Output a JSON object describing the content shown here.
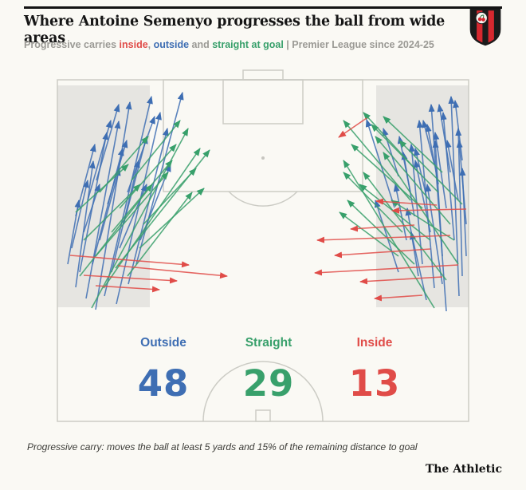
{
  "header": {
    "title": "Where Antoine Semenyo progresses the ball from wide areas",
    "subtitle": {
      "prefix": "Progressive carries ",
      "inside_word": "inside",
      "sep1": ", ",
      "outside_word": "outside",
      "sep2": " and ",
      "straight_word": "straight at goal",
      "suffix": " | Premier League since 2024-25"
    },
    "crest_icon": "afc-bournemouth-crest"
  },
  "chart_data": {
    "type": "scatter",
    "subtype": "football-pitch-carry-map",
    "title": "Where Antoine Semenyo progresses the ball from wide areas",
    "pitch": {
      "view": "attacking half, goal at top, halfway line at bottom",
      "shaded_zones": "wide areas on left and right flanks"
    },
    "categories": [
      "Outside",
      "Straight",
      "Inside"
    ],
    "values": [
      48,
      29,
      13
    ],
    "colors": {
      "outside": "#3e6eb3",
      "straight": "#38a06b",
      "inside": "#e04c48"
    },
    "coords": "page-pixels-660x614",
    "arrows": {
      "outside": [
        [
          120,
          388,
          163,
          128
        ],
        [
          108,
          374,
          149,
          152
        ],
        [
          95,
          360,
          117,
          202
        ],
        [
          131,
          371,
          190,
          121
        ],
        [
          146,
          381,
          201,
          141
        ],
        [
          100,
          341,
          134,
          166
        ],
        [
          116,
          331,
          154,
          186
        ],
        [
          90,
          311,
          110,
          226
        ],
        [
          140,
          341,
          174,
          201
        ],
        [
          161,
          356,
          210,
          161
        ],
        [
          125,
          301,
          150,
          211
        ],
        [
          105,
          291,
          125,
          231
        ],
        [
          95,
          271,
          119,
          181
        ],
        [
          150,
          311,
          184,
          231
        ],
        [
          171,
          331,
          229,
          116
        ],
        [
          135,
          256,
          159,
          176
        ],
        [
          110,
          251,
          139,
          151
        ],
        [
          155,
          281,
          184,
          171
        ],
        [
          85,
          331,
          99,
          251
        ],
        [
          176,
          301,
          214,
          206
        ],
        [
          121,
          226,
          149,
          131
        ],
        [
          160,
          241,
          194,
          146
        ],
        [
          560,
          390,
          541,
          131
        ],
        [
          576,
          371,
          566,
          121
        ],
        [
          545,
          361,
          526,
          151
        ],
        [
          580,
          346,
          575,
          161
        ],
        [
          530,
          331,
          516,
          181
        ],
        [
          555,
          321,
          546,
          176
        ],
        [
          570,
          301,
          556,
          141
        ],
        [
          540,
          291,
          521,
          201
        ],
        [
          585,
          321,
          580,
          211
        ],
        [
          520,
          271,
          506,
          191
        ],
        [
          560,
          261,
          546,
          166
        ],
        [
          575,
          251,
          561,
          176
        ],
        [
          535,
          246,
          521,
          186
        ],
        [
          550,
          231,
          536,
          156
        ],
        [
          500,
          221,
          481,
          161
        ],
        [
          565,
          216,
          551,
          131
        ],
        [
          580,
          201,
          571,
          126
        ],
        [
          545,
          206,
          531,
          151
        ],
        [
          510,
          301,
          496,
          231
        ],
        [
          525,
          346,
          511,
          261
        ],
        [
          585,
          281,
          576,
          176
        ],
        [
          555,
          356,
          536,
          231
        ],
        [
          500,
          341,
          471,
          251
        ],
        [
          515,
          241,
          501,
          171
        ],
        [
          535,
          376,
          516,
          291
        ],
        [
          495,
          260,
          460,
          150
        ]
      ],
      "straight": [
        [
          115,
          386,
          236,
          161
        ],
        [
          130,
          361,
          251,
          186
        ],
        [
          100,
          346,
          191,
          231
        ],
        [
          145,
          336,
          263,
          188
        ],
        [
          120,
          321,
          211,
          216
        ],
        [
          160,
          346,
          241,
          241
        ],
        [
          105,
          301,
          176,
          231
        ],
        [
          140,
          291,
          216,
          201
        ],
        [
          175,
          311,
          256,
          236
        ],
        [
          95,
          266,
          161,
          206
        ],
        [
          150,
          261,
          221,
          181
        ],
        [
          180,
          281,
          246,
          211
        ],
        [
          125,
          241,
          186,
          171
        ],
        [
          165,
          226,
          226,
          151
        ],
        [
          545,
          386,
          431,
          201
        ],
        [
          560,
          351,
          456,
          216
        ],
        [
          520,
          331,
          436,
          251
        ],
        [
          575,
          331,
          481,
          191
        ],
        [
          540,
          301,
          451,
          231
        ],
        [
          505,
          291,
          431,
          216
        ],
        [
          565,
          281,
          471,
          171
        ],
        [
          530,
          261,
          441,
          181
        ],
        [
          550,
          241,
          466,
          156
        ],
        [
          515,
          251,
          431,
          151
        ],
        [
          580,
          256,
          501,
          176
        ],
        [
          500,
          321,
          426,
          266
        ],
        [
          555,
          216,
          481,
          146
        ],
        [
          525,
          216,
          456,
          141
        ],
        [
          570,
          301,
          491,
          251
        ]
      ],
      "inside": [
        [
          88,
          320,
          237,
          332
        ],
        [
          105,
          345,
          222,
          352
        ],
        [
          148,
          333,
          285,
          346
        ],
        [
          120,
          358,
          200,
          363
        ],
        [
          565,
          295,
          398,
          301
        ],
        [
          540,
          312,
          420,
          320
        ],
        [
          575,
          332,
          395,
          342
        ],
        [
          555,
          347,
          452,
          353
        ],
        [
          520,
          282,
          440,
          287
        ],
        [
          585,
          262,
          492,
          264
        ],
        [
          548,
          257,
          472,
          252
        ],
        [
          460,
          148,
          425,
          172
        ],
        [
          530,
          370,
          470,
          374
        ]
      ]
    }
  },
  "footer": {
    "footnote": "Progressive carry: moves the ball at least 5 yards and 15% of the remaining distance to goal",
    "branding": "The Athletic"
  }
}
